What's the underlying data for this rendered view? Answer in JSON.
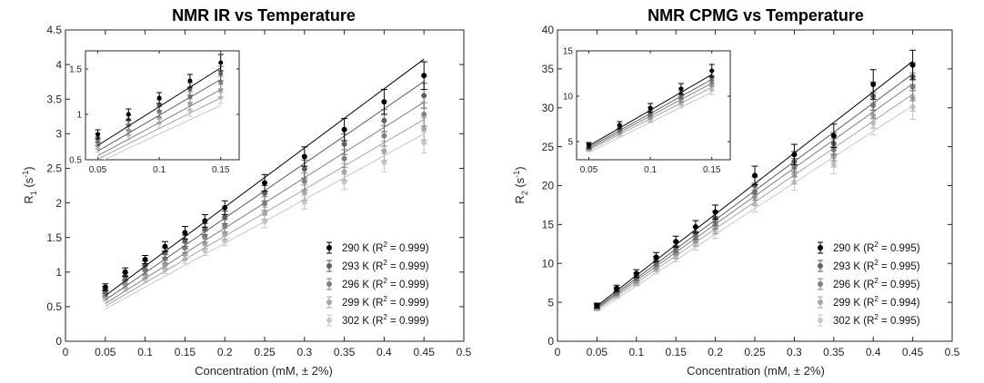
{
  "chart_data": [
    {
      "type": "scatter",
      "title": "NMR IR vs Temperature",
      "xlabel": "Concentration (mM, ± 2%)",
      "ylabel": "R",
      "ylabel_sub": "1",
      "ylabel_unit_pre": " (s",
      "ylabel_unit_sup": "-1",
      "ylabel_unit_post": ")",
      "xlim": [
        0,
        0.5
      ],
      "ylim": [
        0,
        4.5
      ],
      "xticks": [
        0,
        0.05,
        0.1,
        0.15,
        0.2,
        0.25,
        0.3,
        0.35,
        0.4,
        0.45,
        0.5
      ],
      "xtick_labels": [
        "0",
        "0.05",
        "0.1",
        "0.15",
        "0.2",
        "0.25",
        "0.3",
        "0.35",
        "0.4",
        "0.45",
        "0.5"
      ],
      "yticks": [
        0,
        0.5,
        1,
        1.5,
        2,
        2.5,
        3,
        3.5,
        4,
        4.5
      ],
      "ytick_labels": [
        "0",
        "0.5",
        "1",
        "1.5",
        "2",
        "2.5",
        "3",
        "3.5",
        "4",
        "4.5"
      ],
      "x": [
        0.05,
        0.075,
        0.1,
        0.125,
        0.15,
        0.175,
        0.2,
        0.25,
        0.3,
        0.35,
        0.4,
        0.45
      ],
      "series": [
        {
          "name": "290 K",
          "r2_label": "(R",
          "r2_sup": "2",
          "r2_value": " = 0.999)",
          "color": "#000000",
          "values": [
            0.78,
            1.0,
            1.18,
            1.37,
            1.57,
            1.74,
            1.93,
            2.29,
            2.67,
            3.06,
            3.46,
            3.84
          ],
          "errors": [
            0.05,
            0.06,
            0.06,
            0.07,
            0.09,
            0.09,
            0.1,
            0.12,
            0.14,
            0.16,
            0.18,
            0.2
          ],
          "fit": [
            0.23,
            8.55
          ]
        },
        {
          "name": "293 K",
          "r2_label": "(R",
          "r2_sup": "2",
          "r2_value": " = 0.999)",
          "color": "#5f5f5f",
          "values": [
            0.74,
            0.94,
            1.1,
            1.28,
            1.45,
            1.62,
            1.79,
            2.14,
            2.49,
            2.85,
            3.19,
            3.55
          ],
          "errors": [
            0.05,
            0.05,
            0.06,
            0.07,
            0.08,
            0.08,
            0.09,
            0.11,
            0.13,
            0.15,
            0.16,
            0.18
          ],
          "fit": [
            0.2,
            7.9
          ]
        },
        {
          "name": "296 K",
          "r2_label": "(R",
          "r2_sup": "2",
          "r2_value": " = 0.999)",
          "color": "#808080",
          "values": [
            0.7,
            0.88,
            1.03,
            1.19,
            1.35,
            1.51,
            1.67,
            1.99,
            2.31,
            2.64,
            2.97,
            3.28
          ],
          "errors": [
            0.05,
            0.05,
            0.06,
            0.06,
            0.07,
            0.08,
            0.09,
            0.1,
            0.12,
            0.13,
            0.15,
            0.17
          ],
          "fit": [
            0.18,
            7.28
          ]
        },
        {
          "name": "299 K",
          "r2_label": "(R",
          "r2_sup": "2",
          "r2_value": " = 0.999)",
          "color": "#a6a6a6",
          "values": [
            0.66,
            0.82,
            0.96,
            1.11,
            1.26,
            1.41,
            1.55,
            1.85,
            2.15,
            2.45,
            2.75,
            3.07
          ],
          "errors": [
            0.04,
            0.05,
            0.05,
            0.06,
            0.07,
            0.07,
            0.08,
            0.09,
            0.11,
            0.12,
            0.14,
            0.16
          ],
          "fit": [
            0.17,
            6.75
          ]
        },
        {
          "name": "302 K",
          "r2_label": "(R",
          "r2_sup": "2",
          "r2_value": " = 0.999)",
          "color": "#c8c8c8",
          "values": [
            0.62,
            0.77,
            0.9,
            1.04,
            1.18,
            1.31,
            1.45,
            1.73,
            2.01,
            2.3,
            2.58,
            2.87
          ],
          "errors": [
            0.04,
            0.05,
            0.05,
            0.06,
            0.06,
            0.07,
            0.07,
            0.09,
            0.1,
            0.11,
            0.13,
            0.15
          ],
          "fit": [
            0.15,
            6.33
          ]
        }
      ],
      "inset": {
        "xlim": [
          0.04,
          0.165
        ],
        "ylim": [
          0.5,
          1.7
        ],
        "xticks": [
          0.05,
          0.1,
          0.15
        ],
        "xtick_labels": [
          "0.05",
          "0.1",
          "0.15"
        ],
        "yticks": [
          0.5,
          1,
          1.5
        ],
        "ytick_labels": [
          "0.5",
          "1",
          "1.5"
        ]
      }
    },
    {
      "type": "scatter",
      "title": "NMR CPMG vs Temperature",
      "xlabel": "Concentration (mM, ± 2%)",
      "ylabel": "R",
      "ylabel_sub": "2",
      "ylabel_unit_pre": " (s",
      "ylabel_unit_sup": "-1",
      "ylabel_unit_post": ")",
      "xlim": [
        0,
        0.5
      ],
      "ylim": [
        0,
        40
      ],
      "xticks": [
        0,
        0.05,
        0.1,
        0.15,
        0.2,
        0.25,
        0.3,
        0.35,
        0.4,
        0.45,
        0.5
      ],
      "xtick_labels": [
        "0",
        "0.05",
        "0.1",
        "0.15",
        "0.2",
        "0.25",
        "0.3",
        "0.35",
        "0.4",
        "0.45",
        "0.5"
      ],
      "yticks": [
        0,
        5,
        10,
        15,
        20,
        25,
        30,
        35,
        40
      ],
      "ytick_labels": [
        "0",
        "5",
        "10",
        "15",
        "20",
        "25",
        "30",
        "35",
        "40"
      ],
      "x": [
        0.05,
        0.075,
        0.1,
        0.125,
        0.15,
        0.175,
        0.2,
        0.25,
        0.3,
        0.35,
        0.4,
        0.45
      ],
      "series": [
        {
          "name": "290 K",
          "r2_label": "(R",
          "r2_sup": "2",
          "r2_value": " = 0.995)",
          "color": "#000000",
          "values": [
            4.6,
            6.8,
            8.7,
            10.8,
            12.8,
            14.7,
            16.6,
            21.3,
            24.0,
            26.4,
            33.0,
            35.5
          ],
          "errors": [
            0.3,
            0.4,
            0.5,
            0.6,
            0.7,
            0.8,
            0.9,
            1.2,
            1.3,
            1.5,
            1.9,
            1.9
          ],
          "fit": [
            0.6,
            78.6
          ]
        },
        {
          "name": "293 K",
          "r2_label": "(R",
          "r2_sup": "2",
          "r2_value": " = 0.995)",
          "color": "#5f5f5f",
          "values": [
            4.5,
            6.5,
            8.3,
            10.3,
            12.1,
            13.9,
            15.8,
            20.0,
            23.1,
            25.4,
            31.5,
            34.0
          ],
          "errors": [
            0.3,
            0.4,
            0.5,
            0.6,
            0.7,
            0.8,
            0.9,
            1.1,
            1.3,
            1.4,
            1.8,
            1.8
          ],
          "fit": [
            0.6,
            75.0
          ]
        },
        {
          "name": "296 K",
          "r2_label": "(R",
          "r2_sup": "2",
          "r2_value": " = 0.995)",
          "color": "#808080",
          "values": [
            4.4,
            6.3,
            8.0,
            9.9,
            11.7,
            13.4,
            15.2,
            19.2,
            22.3,
            24.6,
            30.3,
            32.7
          ],
          "errors": [
            0.3,
            0.4,
            0.5,
            0.6,
            0.6,
            0.7,
            0.8,
            1.1,
            1.2,
            1.4,
            1.7,
            1.8
          ],
          "fit": [
            0.6,
            72.2
          ]
        },
        {
          "name": "299 K",
          "r2_label": "(R",
          "r2_sup": "2",
          "r2_value": " = 0.994)",
          "color": "#a6a6a6",
          "values": [
            4.3,
            6.1,
            7.7,
            9.5,
            11.2,
            12.9,
            14.6,
            18.5,
            21.4,
            23.7,
            29.0,
            31.3
          ],
          "errors": [
            0.3,
            0.4,
            0.5,
            0.5,
            0.6,
            0.7,
            0.8,
            1.0,
            1.2,
            1.3,
            1.6,
            1.7
          ],
          "fit": [
            0.6,
            69.2
          ]
        },
        {
          "name": "302 K",
          "r2_label": "(R",
          "r2_sup": "2",
          "r2_value": " = 0.995)",
          "color": "#c8c8c8",
          "values": [
            4.2,
            5.9,
            7.5,
            9.2,
            10.8,
            12.4,
            14.0,
            17.6,
            20.5,
            22.8,
            28.0,
            30.1
          ],
          "errors": [
            0.3,
            0.4,
            0.4,
            0.5,
            0.6,
            0.7,
            0.8,
            1.0,
            1.1,
            1.3,
            1.5,
            1.6
          ],
          "fit": [
            0.5,
            66.2
          ]
        }
      ],
      "inset": {
        "xlim": [
          0.04,
          0.165
        ],
        "ylim": [
          3,
          15
        ],
        "xticks": [
          0.05,
          0.1,
          0.15
        ],
        "xtick_labels": [
          "0.05",
          "0.1",
          "0.15"
        ],
        "yticks": [
          5,
          10,
          15
        ],
        "ytick_labels": [
          "5",
          "10",
          "15"
        ]
      }
    }
  ]
}
